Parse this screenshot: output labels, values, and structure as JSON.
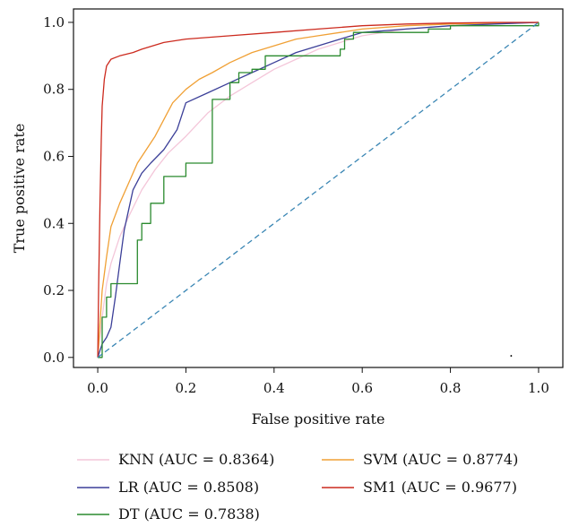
{
  "chart_data": {
    "type": "line",
    "title": "",
    "xlabel": "False positive rate",
    "ylabel": "True positive rate",
    "xlim": [
      -0.055,
      1.055
    ],
    "ylim": [
      -0.03,
      1.04
    ],
    "x_ticks": [
      "0.0",
      "0.2",
      "0.4",
      "0.6",
      "0.8",
      "1.0"
    ],
    "y_ticks": [
      "0.0",
      "0.2",
      "0.4",
      "0.6",
      "0.8",
      "1.0"
    ],
    "grid": false,
    "legend_position": "bottom",
    "series": [
      {
        "name": "KNN (AUC = 0.8364)",
        "color": "#f4c6d9",
        "step": false,
        "x": [
          0,
          0.01,
          0.02,
          0.03,
          0.05,
          0.07,
          0.1,
          0.13,
          0.16,
          0.2,
          0.25,
          0.3,
          0.35,
          0.4,
          0.45,
          0.5,
          0.55,
          0.6,
          0.7,
          0.8,
          0.9,
          1.0
        ],
        "y": [
          0,
          0.12,
          0.22,
          0.28,
          0.36,
          0.42,
          0.5,
          0.56,
          0.61,
          0.66,
          0.73,
          0.78,
          0.82,
          0.86,
          0.89,
          0.92,
          0.94,
          0.96,
          0.98,
          0.99,
          0.995,
          1.0
        ]
      },
      {
        "name": "SVM (AUC = 0.8774)",
        "color": "#f0a035",
        "step": false,
        "x": [
          0,
          0.005,
          0.01,
          0.02,
          0.03,
          0.05,
          0.07,
          0.09,
          0.11,
          0.13,
          0.15,
          0.17,
          0.2,
          0.23,
          0.26,
          0.3,
          0.35,
          0.4,
          0.45,
          0.5,
          0.55,
          0.6,
          0.7,
          0.8,
          0.9,
          1.0
        ],
        "y": [
          0,
          0.1,
          0.2,
          0.3,
          0.39,
          0.46,
          0.52,
          0.58,
          0.62,
          0.66,
          0.71,
          0.76,
          0.8,
          0.83,
          0.85,
          0.88,
          0.91,
          0.93,
          0.95,
          0.96,
          0.97,
          0.98,
          0.99,
          0.995,
          0.998,
          1.0
        ]
      },
      {
        "name": "LR (AUC = 0.8508)",
        "color": "#3b3f98",
        "step": false,
        "x": [
          0,
          0.005,
          0.01,
          0.02,
          0.03,
          0.04,
          0.05,
          0.06,
          0.07,
          0.08,
          0.1,
          0.12,
          0.15,
          0.18,
          0.2,
          0.25,
          0.3,
          0.35,
          0.4,
          0.45,
          0.5,
          0.55,
          0.6,
          0.7,
          0.8,
          0.9,
          1.0
        ],
        "y": [
          0,
          0.02,
          0.04,
          0.06,
          0.09,
          0.18,
          0.28,
          0.38,
          0.44,
          0.5,
          0.55,
          0.58,
          0.62,
          0.68,
          0.76,
          0.79,
          0.82,
          0.85,
          0.88,
          0.91,
          0.93,
          0.95,
          0.97,
          0.98,
          0.99,
          0.995,
          1.0
        ]
      },
      {
        "name": "SM1 (AUC = 0.9677)",
        "color": "#cc2a1e",
        "step": false,
        "x": [
          0,
          0.002,
          0.005,
          0.008,
          0.01,
          0.015,
          0.02,
          0.03,
          0.05,
          0.08,
          0.1,
          0.15,
          0.2,
          0.3,
          0.4,
          0.5,
          0.6,
          0.7,
          0.8,
          0.9,
          1.0
        ],
        "y": [
          0,
          0.2,
          0.45,
          0.65,
          0.75,
          0.83,
          0.87,
          0.89,
          0.9,
          0.91,
          0.92,
          0.94,
          0.95,
          0.96,
          0.97,
          0.98,
          0.99,
          0.995,
          0.998,
          1.0,
          1.0
        ]
      },
      {
        "name": "DT (AUC = 0.7838)",
        "color": "#2a8a2e",
        "step": true,
        "x": [
          0,
          0.01,
          0.02,
          0.03,
          0.05,
          0.07,
          0.09,
          0.09,
          0.1,
          0.1,
          0.12,
          0.13,
          0.15,
          0.18,
          0.2,
          0.22,
          0.26,
          0.28,
          0.3,
          0.32,
          0.35,
          0.38,
          0.55,
          0.56,
          0.58,
          0.6,
          0.75,
          0.8,
          1.0
        ],
        "y": [
          0,
          0.12,
          0.18,
          0.22,
          0.22,
          0.22,
          0.3,
          0.35,
          0.38,
          0.4,
          0.46,
          0.46,
          0.54,
          0.54,
          0.58,
          0.58,
          0.77,
          0.77,
          0.82,
          0.85,
          0.86,
          0.9,
          0.92,
          0.95,
          0.97,
          0.97,
          0.98,
          0.99,
          1.0
        ]
      },
      {
        "name": "",
        "color": "#3a86b4",
        "dashed": true,
        "step": false,
        "x": [
          0,
          1
        ],
        "y": [
          0,
          1
        ]
      }
    ],
    "legend_layout": [
      [
        "KNN (AUC = 0.8364)",
        "SVM (AUC = 0.8774)"
      ],
      [
        "LR (AUC = 0.8508)",
        "SM1 (AUC = 0.9677)"
      ],
      [
        "DT (AUC = 0.7838)"
      ]
    ],
    "annotations": [
      "."
    ]
  }
}
